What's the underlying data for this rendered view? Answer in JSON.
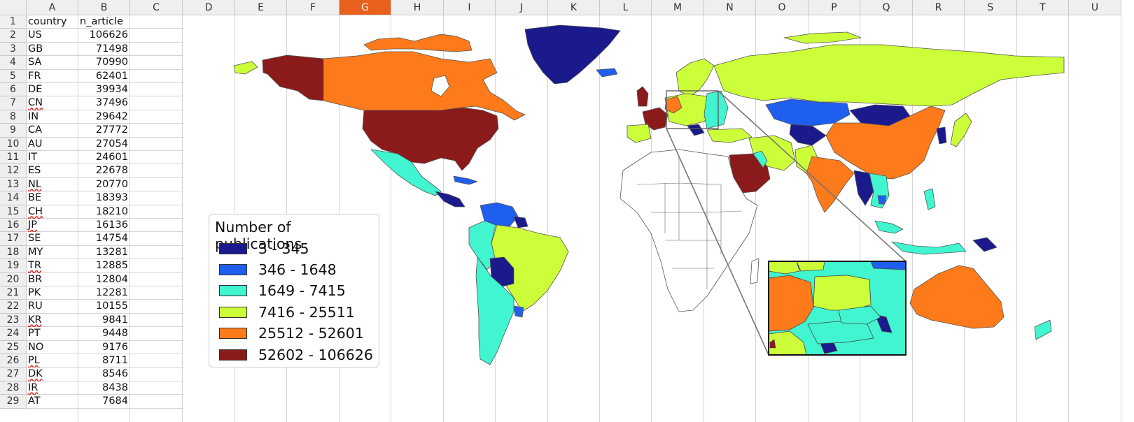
{
  "spreadsheet": {
    "columns": [
      "A",
      "B",
      "C",
      "D",
      "E",
      "F",
      "G",
      "H",
      "I",
      "J",
      "K",
      "L",
      "M",
      "N",
      "O",
      "P",
      "Q",
      "R",
      "S",
      "T",
      "U"
    ],
    "selected_column": "G",
    "rows": [
      "1",
      "2",
      "3",
      "4",
      "5",
      "6",
      "7",
      "8",
      "9",
      "10",
      "11",
      "12",
      "13",
      "14",
      "15",
      "16",
      "17",
      "18",
      "19",
      "20",
      "21",
      "22",
      "23",
      "24",
      "25",
      "26",
      "27",
      "28",
      "29"
    ],
    "header_row": {
      "a": "country",
      "b": "n_article"
    },
    "data": [
      {
        "country": "US",
        "n": "106626"
      },
      {
        "country": "GB",
        "n": "71498"
      },
      {
        "country": "SA",
        "n": "70990"
      },
      {
        "country": "FR",
        "n": "62401"
      },
      {
        "country": "DE",
        "n": "39934"
      },
      {
        "country": "CN",
        "n": "37496"
      },
      {
        "country": "IN",
        "n": "29642"
      },
      {
        "country": "CA",
        "n": "27772"
      },
      {
        "country": "AU",
        "n": "27054"
      },
      {
        "country": "IT",
        "n": "24601"
      },
      {
        "country": "ES",
        "n": "22678"
      },
      {
        "country": "NL",
        "n": "20770"
      },
      {
        "country": "BE",
        "n": "18393"
      },
      {
        "country": "CH",
        "n": "18210"
      },
      {
        "country": "JP",
        "n": "16136"
      },
      {
        "country": "SE",
        "n": "14754"
      },
      {
        "country": "MY",
        "n": "13281"
      },
      {
        "country": "TR",
        "n": "12885"
      },
      {
        "country": "BR",
        "n": "12804"
      },
      {
        "country": "PK",
        "n": "12281"
      },
      {
        "country": "RU",
        "n": "10155"
      },
      {
        "country": "KR",
        "n": "9841"
      },
      {
        "country": "PT",
        "n": "9448"
      },
      {
        "country": "NO",
        "n": "9176"
      },
      {
        "country": "PL",
        "n": "8711"
      },
      {
        "country": "DK",
        "n": "8546"
      },
      {
        "country": "IR",
        "n": "8438"
      },
      {
        "country": "AT",
        "n": "7684"
      }
    ],
    "spellcheck_flagged": [
      "CN",
      "NL",
      "CH",
      "JP",
      "TR",
      "KR",
      "PL",
      "DK",
      "IR"
    ]
  },
  "legend": {
    "title": "Number of publications",
    "items": [
      {
        "label": "3 - 345",
        "color": "#1a1a8c"
      },
      {
        "label": "346 - 1648",
        "color": "#1f5fef"
      },
      {
        "label": "1649 - 7415",
        "color": "#40f5d0"
      },
      {
        "label": "7416 - 25511",
        "color": "#ccff3a"
      },
      {
        "label": "25512 - 52601",
        "color": "#ff7a1a"
      },
      {
        "label": "52602 - 106626",
        "color": "#8b1a1a"
      }
    ]
  },
  "colors": {
    "accent_selected_header": "#e8601c",
    "no_data": "#ffffff",
    "border": "#555555"
  }
}
